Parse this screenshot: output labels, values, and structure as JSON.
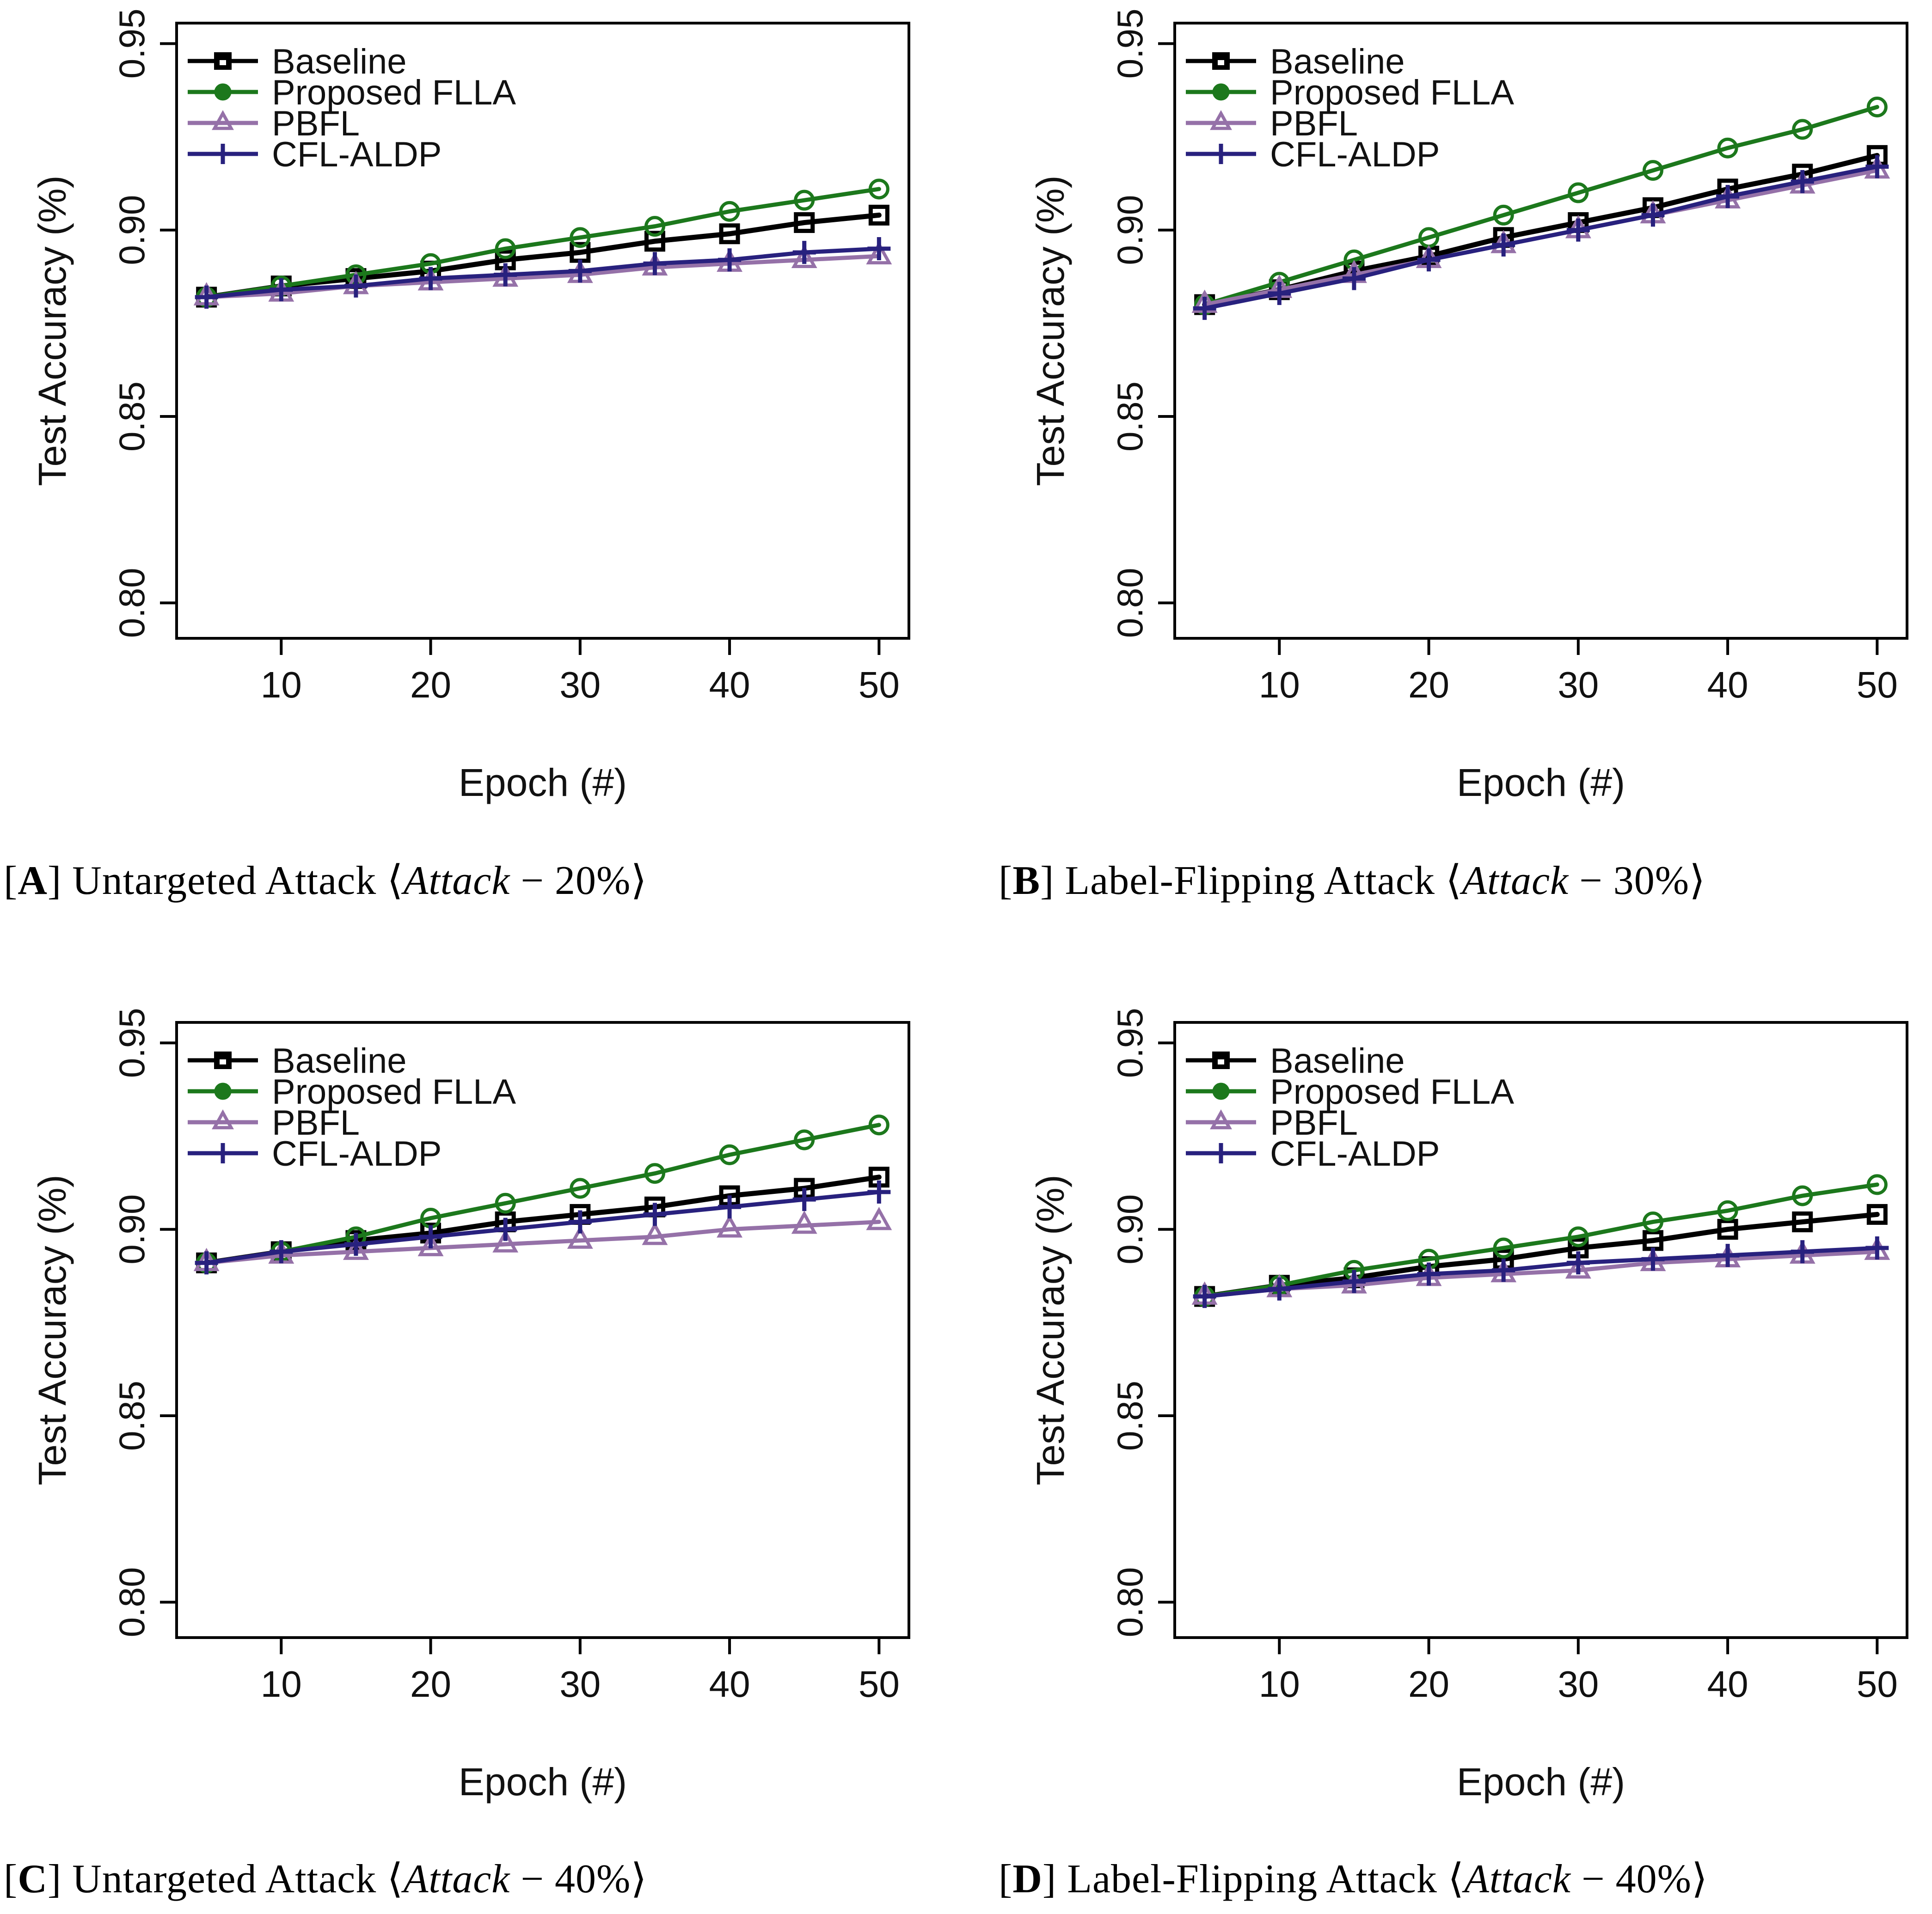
{
  "symbols": {
    "lbracket": "[",
    "rbracket": "]",
    "langle": "⟨",
    "rangle": "⟩",
    "minus": "−"
  },
  "colors": {
    "baseline": "#000000",
    "proposed_flla": "#1c781c",
    "pbfl": "#9571a8",
    "cfl_aldp": "#28217e",
    "axis": "#000000",
    "text": "#111111"
  },
  "chart_data": [
    {
      "type": "line",
      "panel_label": "A",
      "caption_title": "Untargeted Attack",
      "caption_var": "Attack",
      "caption_value": "20%",
      "xlabel": "Epoch (#)",
      "ylabel": "Test Accuracy (%)",
      "xlim": [
        3,
        52
      ],
      "ylim": [
        0.7905,
        0.9555
      ],
      "xticks": [
        10,
        20,
        30,
        40,
        50
      ],
      "xtick_labels": [
        "10",
        "20",
        "30",
        "40",
        "50"
      ],
      "ytick_values": [
        0.8,
        0.85,
        0.9,
        0.95
      ],
      "ytick_labels": [
        "0.80",
        "0.85",
        "0.90",
        "0.95"
      ],
      "legend_position": "top-left",
      "grid": false,
      "x": [
        5,
        10,
        15,
        20,
        25,
        30,
        35,
        40,
        45,
        50
      ],
      "series": [
        {
          "name": "Baseline",
          "marker": "square",
          "color": "#000000",
          "values": [
            0.882,
            0.885,
            0.887,
            0.889,
            0.892,
            0.894,
            0.897,
            0.899,
            0.902,
            0.904
          ]
        },
        {
          "name": "Proposed FLLA",
          "marker": "circle",
          "color": "#1c781c",
          "values": [
            0.882,
            0.885,
            0.888,
            0.891,
            0.895,
            0.898,
            0.901,
            0.905,
            0.908,
            0.911
          ]
        },
        {
          "name": "PBFL",
          "marker": "triangle",
          "color": "#9571a8",
          "values": [
            0.882,
            0.883,
            0.885,
            0.886,
            0.887,
            0.888,
            0.89,
            0.891,
            0.892,
            0.893
          ]
        },
        {
          "name": "CFL-ALDP",
          "marker": "plus",
          "color": "#28217e",
          "values": [
            0.882,
            0.884,
            0.885,
            0.887,
            0.888,
            0.889,
            0.891,
            0.892,
            0.894,
            0.895
          ]
        }
      ]
    },
    {
      "type": "line",
      "panel_label": "B",
      "caption_title": "Label-Flipping Attack",
      "caption_var": "Attack",
      "caption_value": "30%",
      "xlabel": "Epoch (#)",
      "ylabel": "Test Accuracy (%)",
      "xlim": [
        3,
        52
      ],
      "ylim": [
        0.7905,
        0.9555
      ],
      "xticks": [
        10,
        20,
        30,
        40,
        50
      ],
      "xtick_labels": [
        "10",
        "20",
        "30",
        "40",
        "50"
      ],
      "ytick_values": [
        0.8,
        0.85,
        0.9,
        0.95
      ],
      "ytick_labels": [
        "0.80",
        "0.85",
        "0.90",
        "0.95"
      ],
      "legend_position": "top-left",
      "grid": false,
      "x": [
        5,
        10,
        15,
        20,
        25,
        30,
        35,
        40,
        45,
        50
      ],
      "series": [
        {
          "name": "Baseline",
          "marker": "square",
          "color": "#000000",
          "values": [
            0.88,
            0.884,
            0.889,
            0.893,
            0.898,
            0.902,
            0.906,
            0.911,
            0.915,
            0.92
          ]
        },
        {
          "name": "Proposed FLLA",
          "marker": "circle",
          "color": "#1c781c",
          "values": [
            0.88,
            0.886,
            0.892,
            0.898,
            0.904,
            0.91,
            0.916,
            0.922,
            0.927,
            0.933
          ]
        },
        {
          "name": "PBFL",
          "marker": "triangle",
          "color": "#9571a8",
          "values": [
            0.88,
            0.884,
            0.888,
            0.892,
            0.896,
            0.9,
            0.904,
            0.908,
            0.912,
            0.916
          ]
        },
        {
          "name": "CFL-ALDP",
          "marker": "plus",
          "color": "#28217e",
          "values": [
            0.879,
            0.883,
            0.887,
            0.892,
            0.896,
            0.9,
            0.904,
            0.909,
            0.913,
            0.917
          ]
        }
      ]
    },
    {
      "type": "line",
      "panel_label": "C",
      "caption_title": "Untargeted Attack",
      "caption_var": "Attack",
      "caption_value": "40%",
      "xlabel": "Epoch (#)",
      "ylabel": "Test Accuracy (%)",
      "xlim": [
        3,
        52
      ],
      "ylim": [
        0.7905,
        0.9555
      ],
      "xticks": [
        10,
        20,
        30,
        40,
        50
      ],
      "xtick_labels": [
        "10",
        "20",
        "30",
        "40",
        "50"
      ],
      "ytick_values": [
        0.8,
        0.85,
        0.9,
        0.95
      ],
      "ytick_labels": [
        "0.80",
        "0.85",
        "0.90",
        "0.95"
      ],
      "legend_position": "top-left",
      "grid": false,
      "x": [
        5,
        10,
        15,
        20,
        25,
        30,
        35,
        40,
        45,
        50
      ],
      "series": [
        {
          "name": "Baseline",
          "marker": "square",
          "color": "#000000",
          "values": [
            0.891,
            0.894,
            0.897,
            0.899,
            0.902,
            0.904,
            0.906,
            0.909,
            0.911,
            0.914
          ]
        },
        {
          "name": "Proposed FLLA",
          "marker": "circle",
          "color": "#1c781c",
          "values": [
            0.891,
            0.894,
            0.898,
            0.903,
            0.907,
            0.911,
            0.915,
            0.92,
            0.924,
            0.928
          ]
        },
        {
          "name": "PBFL",
          "marker": "triangle",
          "color": "#9571a8",
          "values": [
            0.891,
            0.893,
            0.894,
            0.895,
            0.896,
            0.897,
            0.898,
            0.9,
            0.901,
            0.902
          ]
        },
        {
          "name": "CFL-ALDP",
          "marker": "plus",
          "color": "#28217e",
          "values": [
            0.891,
            0.894,
            0.896,
            0.898,
            0.9,
            0.902,
            0.904,
            0.906,
            0.908,
            0.91
          ]
        }
      ]
    },
    {
      "type": "line",
      "panel_label": "D",
      "caption_title": "Label-Flipping Attack",
      "caption_var": "Attack",
      "caption_value": "40%",
      "xlabel": "Epoch (#)",
      "ylabel": "Test Accuracy (%)",
      "xlim": [
        3,
        52
      ],
      "ylim": [
        0.7905,
        0.9555
      ],
      "xticks": [
        10,
        20,
        30,
        40,
        50
      ],
      "xtick_labels": [
        "10",
        "20",
        "30",
        "40",
        "50"
      ],
      "ytick_values": [
        0.8,
        0.85,
        0.9,
        0.95
      ],
      "ytick_labels": [
        "0.80",
        "0.85",
        "0.90",
        "0.95"
      ],
      "legend_position": "top-left",
      "grid": false,
      "x": [
        5,
        10,
        15,
        20,
        25,
        30,
        35,
        40,
        45,
        50
      ],
      "series": [
        {
          "name": "Baseline",
          "marker": "square",
          "color": "#000000",
          "values": [
            0.882,
            0.885,
            0.887,
            0.89,
            0.892,
            0.895,
            0.897,
            0.9,
            0.902,
            0.904
          ]
        },
        {
          "name": "Proposed FLLA",
          "marker": "circle",
          "color": "#1c781c",
          "values": [
            0.882,
            0.885,
            0.889,
            0.892,
            0.895,
            0.898,
            0.902,
            0.905,
            0.909,
            0.912
          ]
        },
        {
          "name": "PBFL",
          "marker": "triangle",
          "color": "#9571a8",
          "values": [
            0.882,
            0.884,
            0.885,
            0.887,
            0.888,
            0.889,
            0.891,
            0.892,
            0.893,
            0.894
          ]
        },
        {
          "name": "CFL-ALDP",
          "marker": "plus",
          "color": "#28217e",
          "values": [
            0.882,
            0.884,
            0.886,
            0.888,
            0.889,
            0.891,
            0.892,
            0.893,
            0.894,
            0.895
          ]
        }
      ]
    }
  ]
}
